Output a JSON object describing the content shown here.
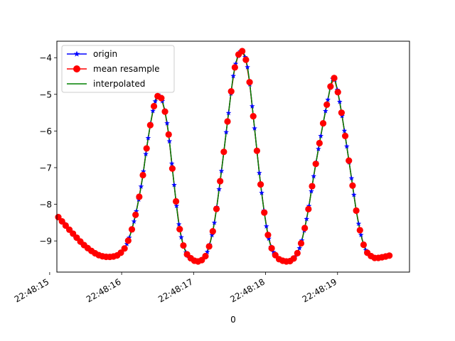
{
  "chart_data": {
    "type": "line",
    "title": "",
    "xlabel": "0",
    "ylabel": "",
    "xlim": [
      "22:48:15.10",
      "22:48:20.00"
    ],
    "ylim": [
      -9.85,
      -3.55
    ],
    "grid": false,
    "legend_position": "upper-left",
    "x_ticks": [
      "22:48:15",
      "22:48:16",
      "22:48:17",
      "22:48:18",
      "22:48:19"
    ],
    "x_tick_values": [
      0,
      1,
      2,
      3,
      4
    ],
    "y_ticks": [
      "−9",
      "−8",
      "−7",
      "−6",
      "−5",
      "−4"
    ],
    "y_tick_values": [
      -9,
      -8,
      -7,
      -6,
      -5,
      -4
    ],
    "x_start": "22:48:15.00",
    "x_unit": "seconds",
    "keypoints": [
      [
        0.12,
        -8.35
      ],
      [
        0.3,
        -8.75
      ],
      [
        0.5,
        -9.15
      ],
      [
        0.7,
        -9.4
      ],
      [
        0.9,
        -9.42
      ],
      [
        1.0,
        -9.3
      ],
      [
        1.08,
        -9.05
      ],
      [
        1.18,
        -8.4
      ],
      [
        1.28,
        -7.4
      ],
      [
        1.36,
        -6.3
      ],
      [
        1.44,
        -5.4
      ],
      [
        1.5,
        -5.05
      ],
      [
        1.56,
        -5.15
      ],
      [
        1.64,
        -5.9
      ],
      [
        1.72,
        -7.3
      ],
      [
        1.8,
        -8.6
      ],
      [
        1.88,
        -9.25
      ],
      [
        1.98,
        -9.5
      ],
      [
        2.08,
        -9.55
      ],
      [
        2.18,
        -9.35
      ],
      [
        2.28,
        -8.6
      ],
      [
        2.38,
        -7.2
      ],
      [
        2.48,
        -5.6
      ],
      [
        2.56,
        -4.4
      ],
      [
        2.64,
        -3.85
      ],
      [
        2.7,
        -3.9
      ],
      [
        2.76,
        -4.4
      ],
      [
        2.84,
        -5.8
      ],
      [
        2.94,
        -7.6
      ],
      [
        3.04,
        -8.9
      ],
      [
        3.14,
        -9.4
      ],
      [
        3.26,
        -9.55
      ],
      [
        3.38,
        -9.5
      ],
      [
        3.48,
        -9.15
      ],
      [
        3.58,
        -8.3
      ],
      [
        3.68,
        -7.1
      ],
      [
        3.78,
        -6.0
      ],
      [
        3.86,
        -5.2
      ],
      [
        3.94,
        -4.55
      ],
      [
        4.0,
        -4.9
      ],
      [
        4.08,
        -5.8
      ],
      [
        4.18,
        -7.1
      ],
      [
        4.28,
        -8.4
      ],
      [
        4.38,
        -9.2
      ],
      [
        4.5,
        -9.45
      ],
      [
        4.6,
        -9.45
      ],
      [
        4.72,
        -9.4
      ]
    ],
    "series": [
      {
        "name": "origin",
        "color": "#0000ff",
        "marker": "star",
        "point_count": 140
      },
      {
        "name": "mean resample",
        "color": "#ff0000",
        "marker": "circle",
        "point_count": 90
      },
      {
        "name": "interpolated",
        "color": "#008000",
        "marker": "none",
        "point_count": 0
      }
    ]
  }
}
